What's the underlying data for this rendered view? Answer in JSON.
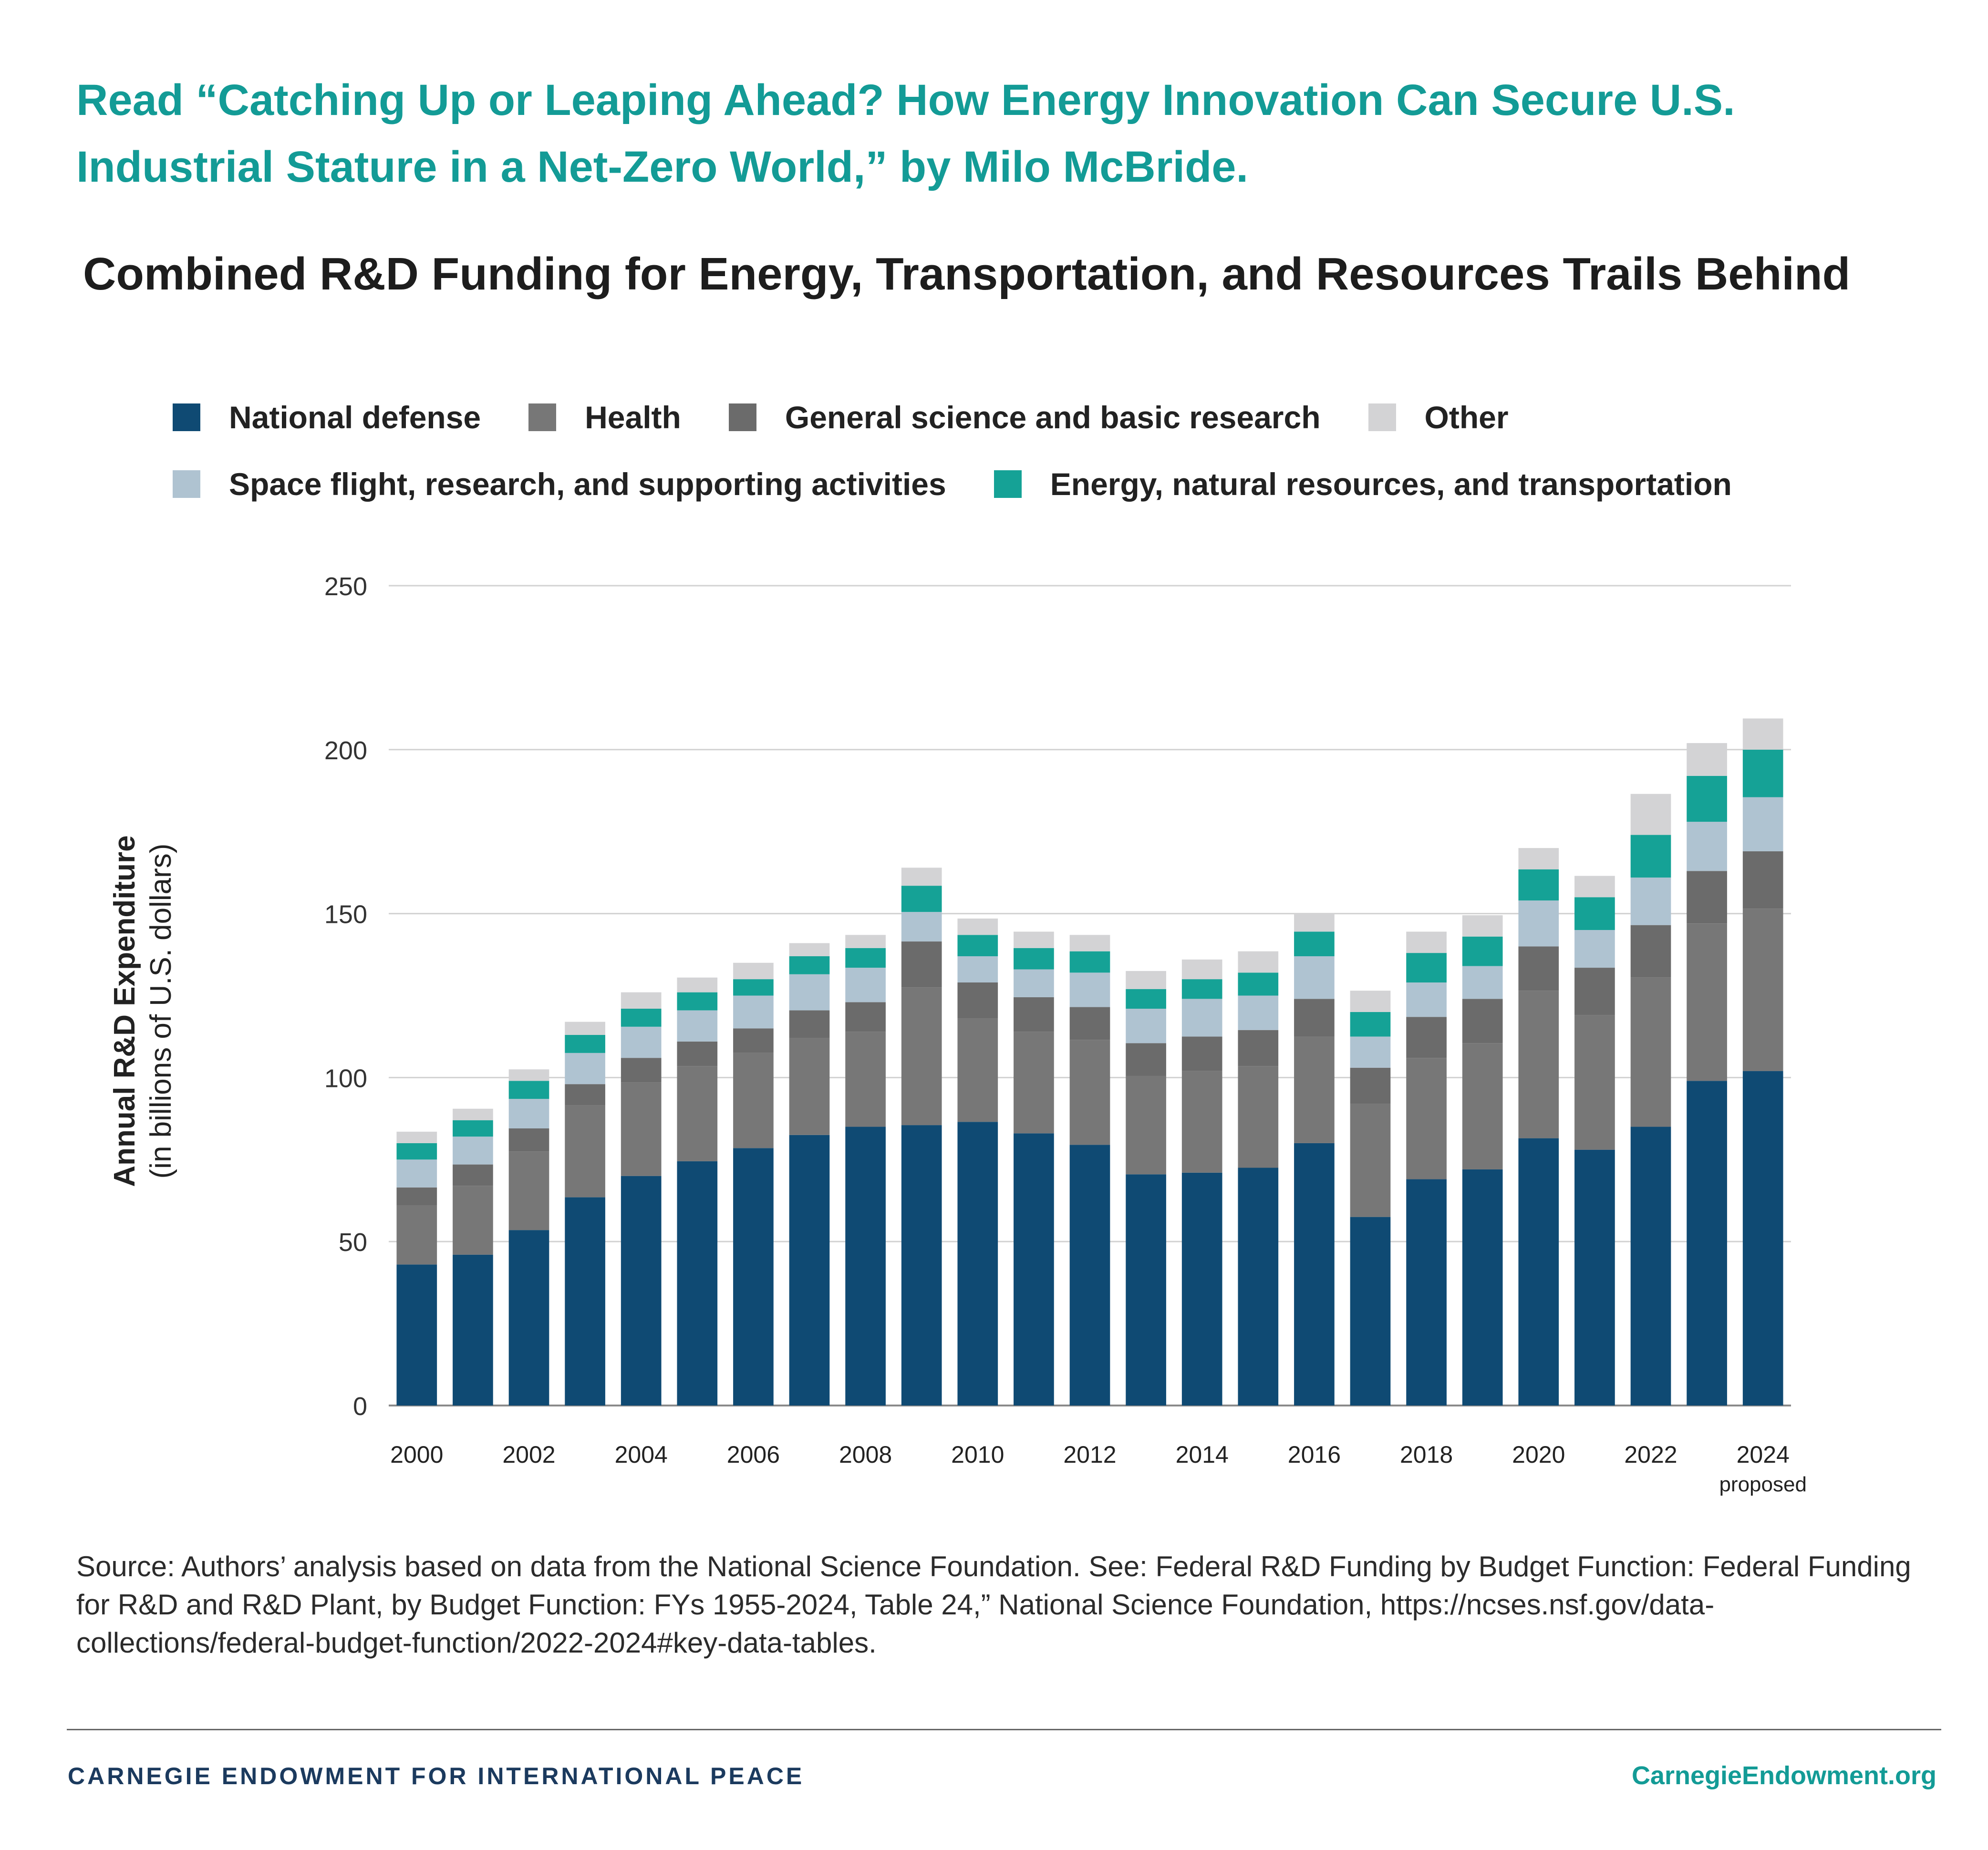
{
  "promo": "Read “Catching Up or Leaping Ahead? How Energy Innovation Can Secure U.S. Industrial Stature in a Net-Zero World,” by Milo McBride.",
  "chart_title": "Combined R&D Funding for Energy, Transportation, and  Resources Trails Behind",
  "legend": [
    {
      "label": "National defense",
      "color": "#0f4a73"
    },
    {
      "label": "Health",
      "color": "#777777"
    },
    {
      "label": "General science and basic research",
      "color": "#6b6b6b"
    },
    {
      "label": "Other",
      "color": "#d3d3d5"
    },
    {
      "label": "Space flight, research, and supporting activities",
      "color": "#afc3d1"
    },
    {
      "label": "Energy, natural resources, and transportation",
      "color": "#15a296"
    }
  ],
  "y_axis": {
    "label": "Annual R&D Expenditure",
    "sublabel": "(in billions of U.S. dollars)"
  },
  "chart_data": {
    "type": "bar",
    "stacked": true,
    "ylabel": "Annual R&D Expenditure (in billions of U.S. dollars)",
    "ylim": [
      0,
      250
    ],
    "yticks": [
      0,
      50,
      100,
      150,
      200,
      250
    ],
    "grid": true,
    "legend_position": "top",
    "categories": [
      "2000",
      "2001",
      "2002",
      "2003",
      "2004",
      "2005",
      "2006",
      "2007",
      "2008",
      "2009",
      "2010",
      "2011",
      "2012",
      "2013",
      "2014",
      "2015",
      "2016",
      "2017",
      "2018",
      "2019",
      "2020",
      "2021",
      "2022",
      "2023",
      "2024"
    ],
    "xtick_labels": [
      {
        "category": "2000",
        "text": "2000"
      },
      {
        "category": "2002",
        "text": "2002"
      },
      {
        "category": "2004",
        "text": "2004"
      },
      {
        "category": "2006",
        "text": "2006"
      },
      {
        "category": "2008",
        "text": "2008"
      },
      {
        "category": "2010",
        "text": "2010"
      },
      {
        "category": "2012",
        "text": "2012"
      },
      {
        "category": "2014",
        "text": "2014"
      },
      {
        "category": "2016",
        "text": "2016"
      },
      {
        "category": "2018",
        "text": "2018"
      },
      {
        "category": "2020",
        "text": "2020"
      },
      {
        "category": "2022",
        "text": "2022"
      },
      {
        "category": "2024",
        "text": "2024",
        "subtext": "proposed"
      }
    ],
    "series": [
      {
        "name": "National defense",
        "color": "#0f4a73",
        "values": [
          43,
          46,
          53.5,
          63.5,
          70,
          74.5,
          78.5,
          82.5,
          85,
          85.5,
          86.5,
          83,
          79.5,
          70.5,
          71,
          72.5,
          80,
          57.5,
          69,
          72,
          81.5,
          78,
          85,
          99,
          102
        ]
      },
      {
        "name": "Health",
        "color": "#777777",
        "values": [
          18,
          21,
          24,
          28,
          28.5,
          29,
          29,
          29.5,
          29,
          42,
          31.5,
          31,
          32,
          30,
          31,
          31,
          32.5,
          34.5,
          37,
          38.5,
          45,
          41,
          45.5,
          48,
          49.5
        ]
      },
      {
        "name": "General science and basic research",
        "color": "#6b6b6b",
        "values": [
          5.5,
          6.5,
          7,
          6.5,
          7.5,
          7.5,
          7.5,
          8.5,
          9,
          14,
          11,
          10.5,
          10,
          10,
          10.5,
          11,
          11.5,
          11,
          12.5,
          13.5,
          13.5,
          14.5,
          16,
          16,
          17.5
        ]
      },
      {
        "name": "Space flight, research, and supporting activities",
        "color": "#afc3d1",
        "values": [
          8.5,
          8.5,
          9,
          9.5,
          9.5,
          9.5,
          10,
          11,
          10.5,
          9,
          8,
          8.5,
          10.5,
          10.5,
          11.5,
          10.5,
          13,
          9.5,
          10.5,
          10,
          14,
          11.5,
          14.5,
          15,
          16.5
        ]
      },
      {
        "name": "Energy, natural resources, and transportation",
        "color": "#15a296",
        "values": [
          5,
          5,
          5.5,
          5.5,
          5.5,
          5.5,
          5,
          5.5,
          6,
          8,
          6.5,
          6.5,
          6.5,
          6,
          6,
          7,
          7.5,
          7.5,
          9,
          9,
          9.5,
          10,
          13,
          14,
          14.5
        ]
      },
      {
        "name": "Other",
        "color": "#d3d3d5",
        "values": [
          3.5,
          3.5,
          3.5,
          4,
          5,
          4.5,
          5,
          4,
          4,
          5.5,
          5,
          5,
          5,
          5.5,
          6,
          6.5,
          5.5,
          6.5,
          6.5,
          6.5,
          6.5,
          6.5,
          12.5,
          10,
          9.5
        ]
      }
    ]
  },
  "source": "Source: Authors’ analysis based on data from the National Science Foundation. See: Federal R&D Funding by Budget Function:  Federal Funding for R&D and R&D Plant, by Budget Function: FYs 1955-2024, Table 24,” National Science Foundation, https://ncses.nsf.gov/data-collections/federal-budget-function/2022-2024#key-data-tables.",
  "footer": {
    "org": "CARNEGIE ENDOWMENT FOR INTERNATIONAL PEACE",
    "url": "CarnegieEndowment.org"
  }
}
